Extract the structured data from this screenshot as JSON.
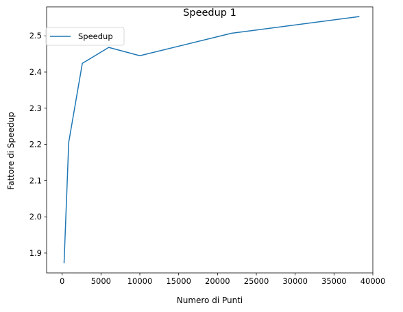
{
  "chart_data": {
    "type": "line",
    "title": "Speedup 1",
    "xlabel": "Numero di Punti",
    "ylabel": "Fattore di Speedup",
    "xlim": [
      -2000,
      40000
    ],
    "ylim": [
      1.845,
      2.58
    ],
    "xticks": [
      0,
      5000,
      10000,
      15000,
      20000,
      25000,
      30000,
      35000,
      40000
    ],
    "yticks": [
      1.9,
      2.0,
      2.1,
      2.2,
      2.3,
      2.4,
      2.5
    ],
    "ytick_labels": [
      "1.9",
      "2.0",
      "2.1",
      "2.2",
      "2.3",
      "2.4",
      "2.5"
    ],
    "grid": false,
    "legend_position": "upper-left",
    "series": [
      {
        "name": "Speedup",
        "color": "#1f77b4",
        "x": [
          250,
          850,
          2600,
          6000,
          10000,
          21800,
          38200
        ],
        "y": [
          1.873,
          2.206,
          2.424,
          2.468,
          2.445,
          2.507,
          2.553
        ]
      }
    ]
  }
}
